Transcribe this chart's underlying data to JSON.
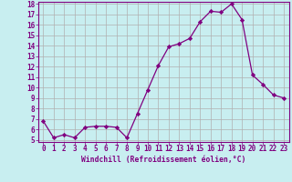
{
  "x": [
    0,
    1,
    2,
    3,
    4,
    5,
    6,
    7,
    8,
    9,
    10,
    11,
    12,
    13,
    14,
    15,
    16,
    17,
    18,
    19,
    20,
    21,
    22,
    23
  ],
  "y": [
    6.8,
    5.2,
    5.5,
    5.2,
    6.2,
    6.3,
    6.3,
    6.2,
    5.2,
    7.5,
    9.8,
    12.1,
    13.9,
    14.2,
    14.7,
    16.3,
    17.3,
    17.2,
    18.0,
    16.5,
    11.2,
    10.3,
    9.3,
    9.0
  ],
  "line_color": "#800080",
  "marker": "D",
  "marker_size": 2.2,
  "bg_color": "#c8eef0",
  "grid_color": "#b0b0b0",
  "xlabel": "Windchill (Refroidissement éolien,°C)",
  "ylabel": "",
  "ylim": [
    5,
    18
  ],
  "xlim": [
    -0.5,
    23.5
  ],
  "yticks": [
    5,
    6,
    7,
    8,
    9,
    10,
    11,
    12,
    13,
    14,
    15,
    16,
    17,
    18
  ],
  "xticks": [
    0,
    1,
    2,
    3,
    4,
    5,
    6,
    7,
    8,
    9,
    10,
    11,
    12,
    13,
    14,
    15,
    16,
    17,
    18,
    19,
    20,
    21,
    22,
    23
  ],
  "font_color": "#800080",
  "axis_color": "#800080",
  "tick_color": "#800080",
  "xlabel_fontsize": 5.8,
  "tick_fontsize": 5.5
}
